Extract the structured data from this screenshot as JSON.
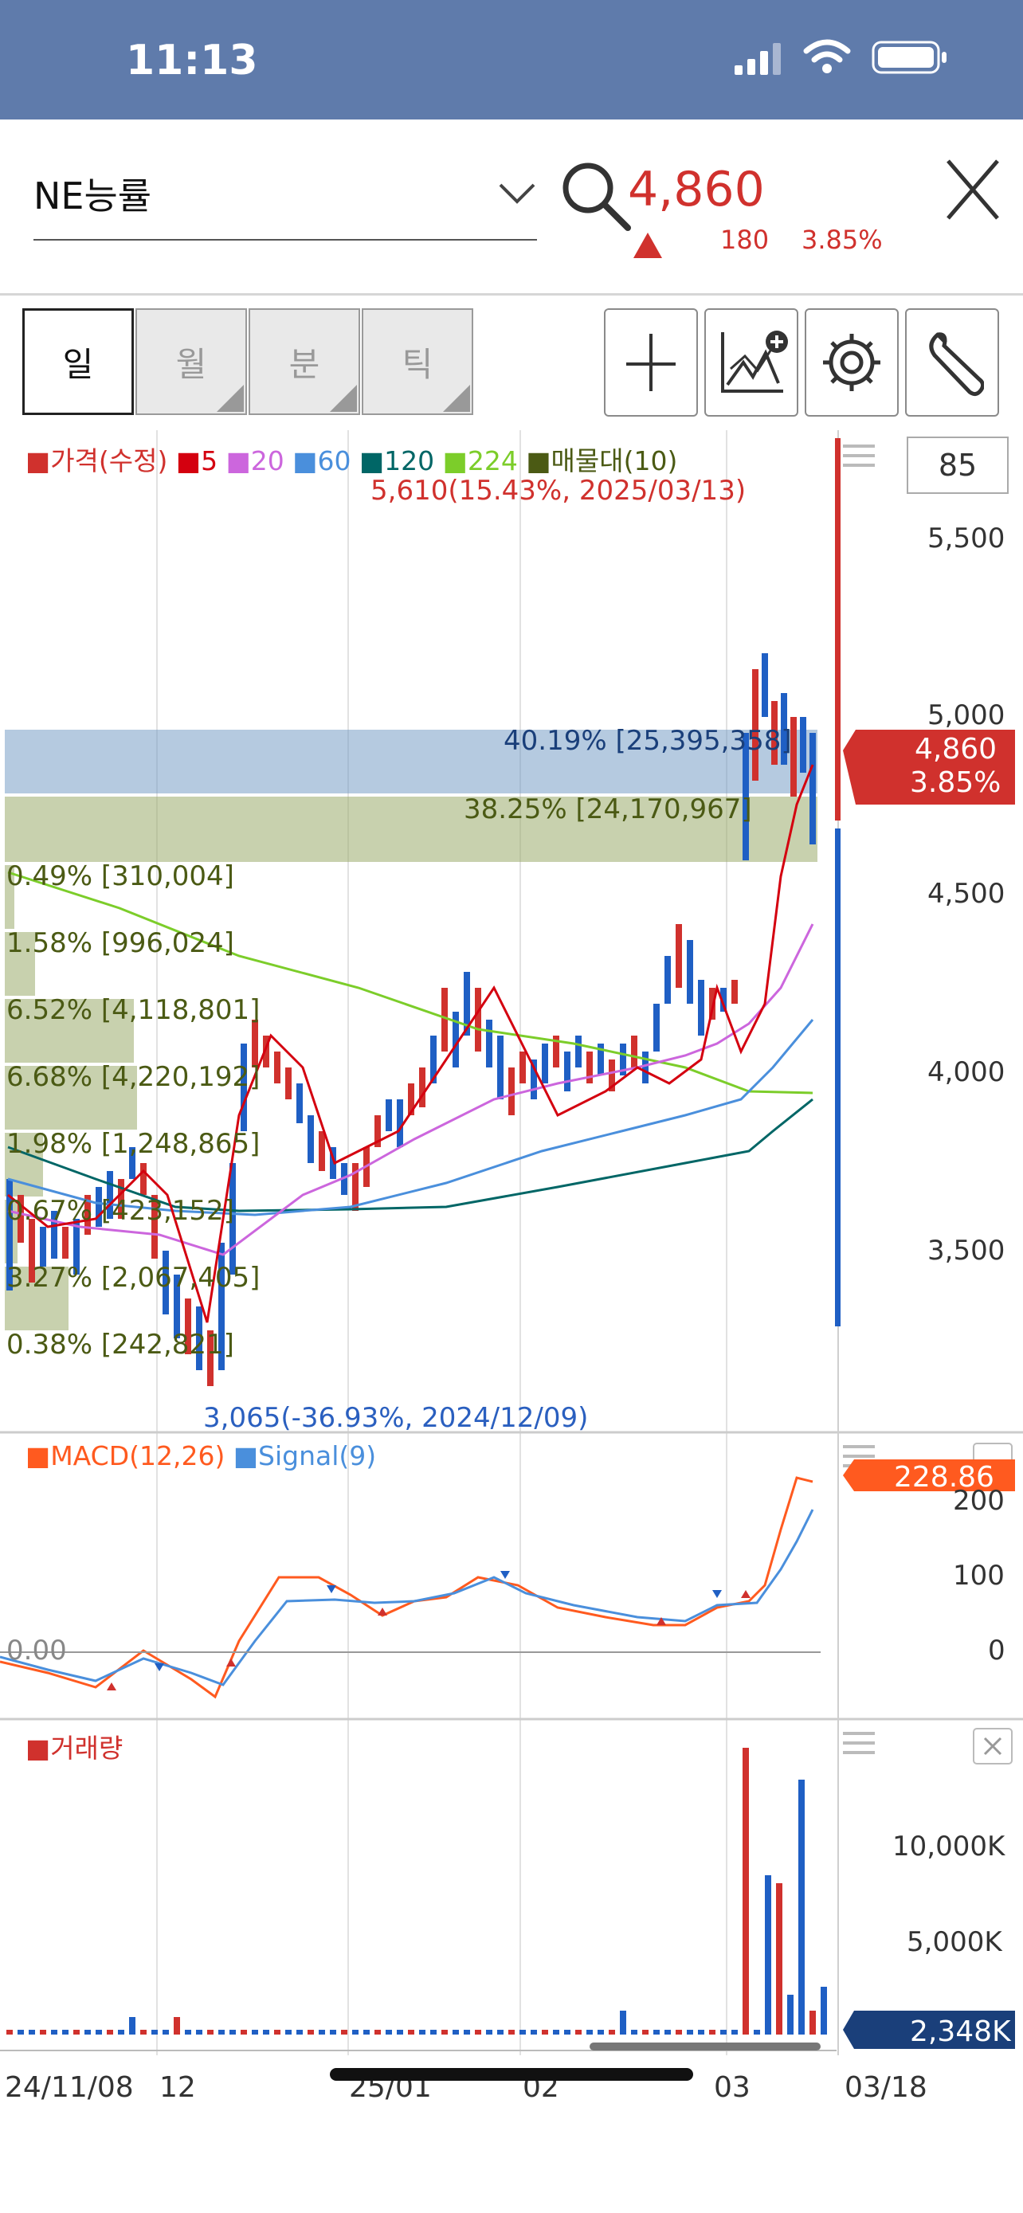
{
  "status_bar": {
    "time": "11:13"
  },
  "header": {
    "stock_name": "NE능률",
    "price": "4,860",
    "change_abs": "180",
    "change_pct": "3.85%"
  },
  "tabs": [
    {
      "label": "일",
      "active": true
    },
    {
      "label": "월",
      "active": false
    },
    {
      "label": "분",
      "active": false
    },
    {
      "label": "틱",
      "active": false
    }
  ],
  "toolbar": {
    "crosshair": "crosshair-icon",
    "indicator": "indicator-add-icon",
    "settings": "gear-icon",
    "tools": "wrench-icon"
  },
  "chart": {
    "legend": {
      "price": "가격(수정)",
      "ma5": "5",
      "ma20": "20",
      "ma60": "60",
      "ma120": "120",
      "ma224": "224",
      "volume_profile": "매물대(10)"
    },
    "zoom_value": "85",
    "high_label": "5,610(15.43%, 2025/03/13)",
    "low_label": "3,065(-36.93%, 2024/12/09)",
    "price_axis": [
      "5,500",
      "5,000",
      "4,500",
      "4,000",
      "3,500"
    ],
    "current_price_tag": {
      "price": "4,860",
      "pct": "3.85%"
    },
    "volume_profile": [
      "40.19% [25,395,358]",
      "38.25% [24,170,967]",
      "0.49% [310,004]",
      "1.58% [996,024]",
      "6.52% [4,118,801]",
      "6.68% [4,220,192]",
      "1.98% [1,248,865]",
      "0.67% [423,152]",
      "3.27% [2,067,405]",
      "0.38% [242,821]"
    ],
    "colors": {
      "up": "#d0312d",
      "down": "#1f5fc4",
      "ma5": "#d4000f",
      "ma20": "#cc66dd",
      "ma60": "#4a8fdc",
      "ma120": "#006666",
      "ma224": "#7ccd2a"
    }
  },
  "macd": {
    "legend_macd": "MACD(12,26)",
    "legend_signal": "Signal(9)",
    "zero_label": "0.00",
    "axis": [
      "200",
      "100",
      "0"
    ],
    "value_tag": "228.86"
  },
  "volume": {
    "legend": "거래량",
    "axis": [
      "10,000K",
      "5,000K"
    ],
    "value_tag": "2,348K"
  },
  "date_axis": [
    "24/11/08",
    "12",
    "25/01",
    "02",
    "03",
    "03/18"
  ]
}
